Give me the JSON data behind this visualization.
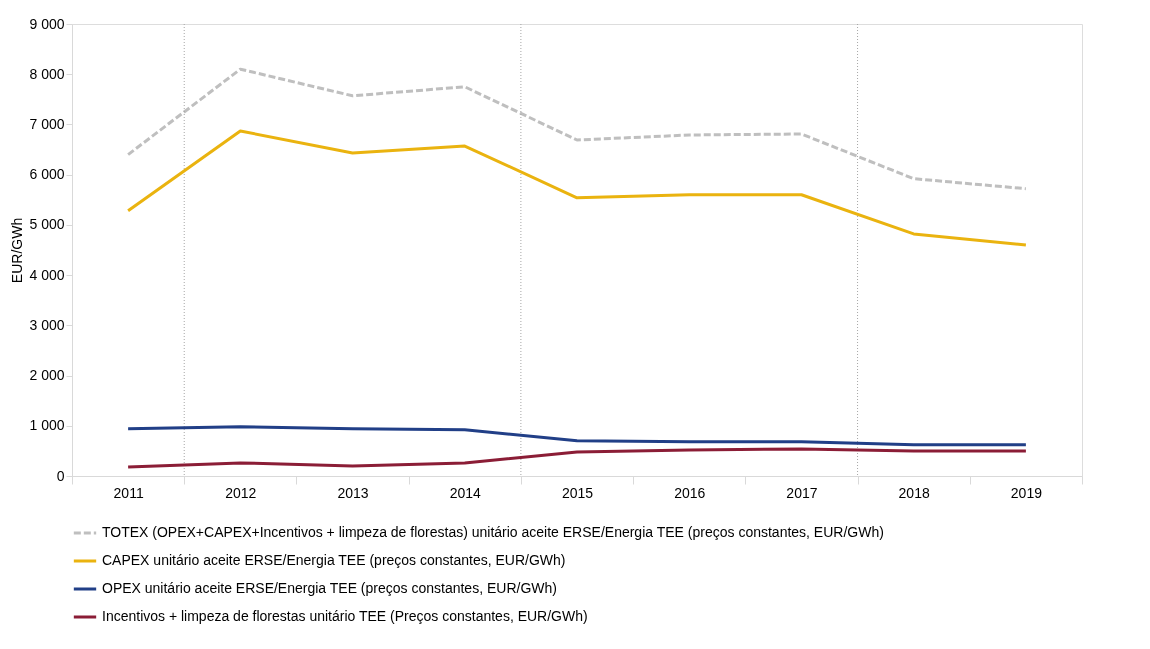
{
  "chart_data": {
    "type": "line",
    "ylabel": "EUR/GWh",
    "x": [
      2011,
      2012,
      2013,
      2014,
      2015,
      2016,
      2017,
      2018,
      2019
    ],
    "xlim": [
      2010.5,
      2019.5
    ],
    "xticks": [
      {
        "value": 2010.5,
        "label": null
      },
      2011,
      {
        "value": 2011.5,
        "label": null
      },
      2012,
      {
        "value": 2012.5,
        "label": null
      },
      2013,
      {
        "value": 2013.5,
        "label": null
      },
      2014,
      {
        "value": 2014.5,
        "label": null
      },
      2015,
      {
        "value": 2015.5,
        "label": null
      },
      2016,
      {
        "value": 2016.5,
        "label": null
      },
      2017,
      {
        "value": 2017.5,
        "label": null
      },
      2018,
      {
        "value": 2018.5,
        "label": null
      },
      2019,
      {
        "value": 2019.5,
        "label": null
      }
    ],
    "series": [
      {
        "name": "TOTEX (OPEX+CAPEX+Incentivos + limpeza de florestas) unitário aceite ERSE/Energia TEE (preços constantes, EUR/GWh)",
        "color": "#bfbfbf",
        "line_style": "dashed",
        "values": [
          6400,
          8100,
          7570,
          7750,
          6690,
          6790,
          6810,
          5920,
          5720
        ]
      },
      {
        "name": "CAPEX unitário aceite ERSE/Energia TEE (preços constantes, EUR/GWh)",
        "color": "#eab30f",
        "values": [
          5280,
          6870,
          6430,
          6570,
          5540,
          5600,
          5600,
          4820,
          4600
        ]
      },
      {
        "name": "OPEX unitário aceite ERSE/Energia TEE (preços constantes, EUR/GWh)",
        "color": "#213f87",
        "values": [
          940,
          980,
          940,
          920,
          700,
          680,
          680,
          620,
          620
        ]
      },
      {
        "name": "Incentivos + limpeza de florestas unitário TEE (Preços constantes, EUR/GWh)",
        "color": "#8b1d36",
        "values": [
          180,
          260,
          200,
          260,
          480,
          520,
          540,
          500,
          500
        ]
      }
    ],
    "ylim": [
      0,
      9000
    ],
    "yticks": [
      {
        "value": 0,
        "label": "0"
      },
      {
        "value": 1000,
        "label": "1 000"
      },
      {
        "value": 2000,
        "label": "2 000"
      },
      {
        "value": 3000,
        "label": "3 000"
      },
      {
        "value": 4000,
        "label": "4 000"
      },
      {
        "value": 5000,
        "label": "5 000"
      },
      {
        "value": 6000,
        "label": "6 000"
      },
      {
        "value": 7000,
        "label": "7 000"
      },
      {
        "value": 8000,
        "label": "8 000"
      },
      {
        "value": 9000,
        "label": "9 000"
      }
    ],
    "ref_lines": [
      {
        "axis": "x",
        "value": 2011.5,
        "color": "#a6a6a6",
        "line_style": "dotted"
      },
      {
        "axis": "x",
        "value": 2014.5,
        "color": "#a6a6a6",
        "line_style": "dotted"
      },
      {
        "axis": "x",
        "value": 2017.5,
        "color": "#a6a6a6",
        "line_style": "dotted"
      }
    ],
    "grid": false,
    "legend": "bottom",
    "marker": "none",
    "line_style": "solid"
  }
}
